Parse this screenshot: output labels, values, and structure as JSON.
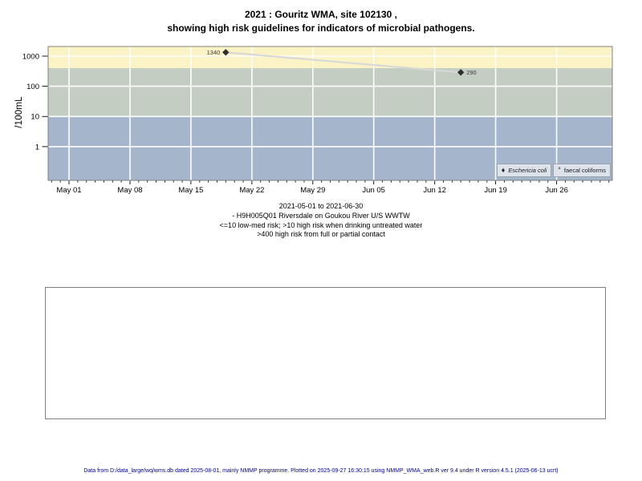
{
  "chart_data": {
    "type": "line",
    "title_lines": [
      "2021 : Gouritz WMA, site 102130 ,",
      "showing high risk guidelines for indicators of microbial pathogens."
    ],
    "ylabel": "/100mL",
    "grid_color": "#FFFFFF",
    "panel_border_color": "#808080",
    "x_axis": {
      "start_date": "2021-05-01",
      "domain_days": [
        -2.4,
        62.4
      ],
      "tick_days": [
        0,
        7,
        14,
        21,
        28,
        35,
        42,
        49,
        56
      ],
      "tick_labels": [
        "May 01",
        "May 08",
        "May 15",
        "May 22",
        "May 29",
        "Jun 05",
        "Jun 12",
        "Jun 19",
        "Jun 26"
      ],
      "minor_tick_day_range": [
        -2,
        62
      ]
    },
    "y_axis": {
      "scale": "log10",
      "domain_log10": [
        -1.12,
        3.32
      ],
      "tick_values": [
        1000,
        100,
        10,
        1
      ],
      "tick_labels": [
        "1000",
        "100",
        "10",
        "1"
      ]
    },
    "bands": [
      {
        "name": "high risk >400",
        "from": 400,
        "to": 2100,
        "color": "#FBF3C6"
      },
      {
        "name": "high risk >10",
        "from": 10,
        "to": 400,
        "color": "#C3CDC1"
      },
      {
        "name": "low-med <=10",
        "from": 0.075,
        "to": 10,
        "color": "#A4B5CC"
      }
    ],
    "series": [
      {
        "name": "Eschericia coli",
        "marker": "filled-diamond",
        "line_color": "#D8D8D8",
        "marker_color": "#2E2E2E",
        "points": [
          {
            "day": 18,
            "value": 1340,
            "label": "1340",
            "label_side": "left"
          },
          {
            "day": 45,
            "value": 290,
            "label": "290",
            "label_side": "right"
          }
        ]
      },
      {
        "name": "faecal coliforms",
        "marker": "open-circle",
        "points": []
      }
    ],
    "legend": {
      "items": [
        {
          "marker": "♦",
          "label": "Eschericia coli"
        },
        {
          "marker": "°",
          "label": "faecal coliforms"
        }
      ]
    },
    "caption_lines": [
      "2021-05-01 to 2021-06-30",
      "- H9H005Q01 Riversdale on Goukou River U/S WWTW",
      "<=10 low-med risk; >10 high risk when drinking untreated water",
      ">400 high risk from full or partial contact"
    ]
  },
  "footer": {
    "text": "Data from D:/data_large/wq/wms.db dated 2025-08-01, mainly NMMP programme. Plotted on 2025-09-27 16:30:15 using NMMP_WMA_web.R ver 9.4 under R version 4.5.1 (2025-06-13 ucrt)"
  }
}
